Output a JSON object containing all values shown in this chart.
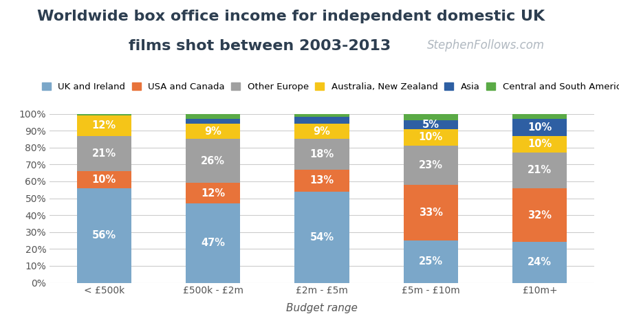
{
  "title_line1": "Worldwide box office income for independent domestic UK",
  "title_line2": "films shot between 2003-2013",
  "watermark": "StephenFollows.com",
  "xlabel": "Budget range",
  "categories": [
    "< £500k",
    "£500k - £2m",
    "£2m - £5m",
    "£5m - £10m",
    "£10m+"
  ],
  "segments": [
    {
      "label": "UK and Ireland",
      "color": "#7ba7c9",
      "values": [
        56,
        47,
        54,
        25,
        24
      ]
    },
    {
      "label": "USA and Canada",
      "color": "#e8733a",
      "values": [
        10,
        12,
        13,
        33,
        32
      ]
    },
    {
      "label": "Other Europe",
      "color": "#a0a0a0",
      "values": [
        21,
        26,
        18,
        23,
        21
      ]
    },
    {
      "label": "Australia, New Zealand",
      "color": "#f5c518",
      "values": [
        12,
        9,
        9,
        10,
        10
      ]
    },
    {
      "label": "Asia",
      "color": "#2e5fa3",
      "values": [
        0,
        3,
        4,
        5,
        10
      ]
    },
    {
      "label": "Central and South America",
      "color": "#5aaa46",
      "values": [
        1,
        3,
        2,
        4,
        3
      ]
    }
  ],
  "ytick_labels": [
    "0%",
    "10%",
    "20%",
    "30%",
    "40%",
    "50%",
    "60%",
    "70%",
    "80%",
    "90%",
    "100%"
  ],
  "ytick_values": [
    0,
    10,
    20,
    30,
    40,
    50,
    60,
    70,
    80,
    90,
    100
  ],
  "bar_width": 0.5,
  "title_fontsize": 16,
  "label_fontsize": 10.5,
  "legend_fontsize": 9.5,
  "axis_fontsize": 10,
  "watermark_fontsize": 12,
  "background_color": "#ffffff",
  "grid_color": "#cccccc",
  "title_color": "#2d3e50",
  "tick_color": "#555555"
}
